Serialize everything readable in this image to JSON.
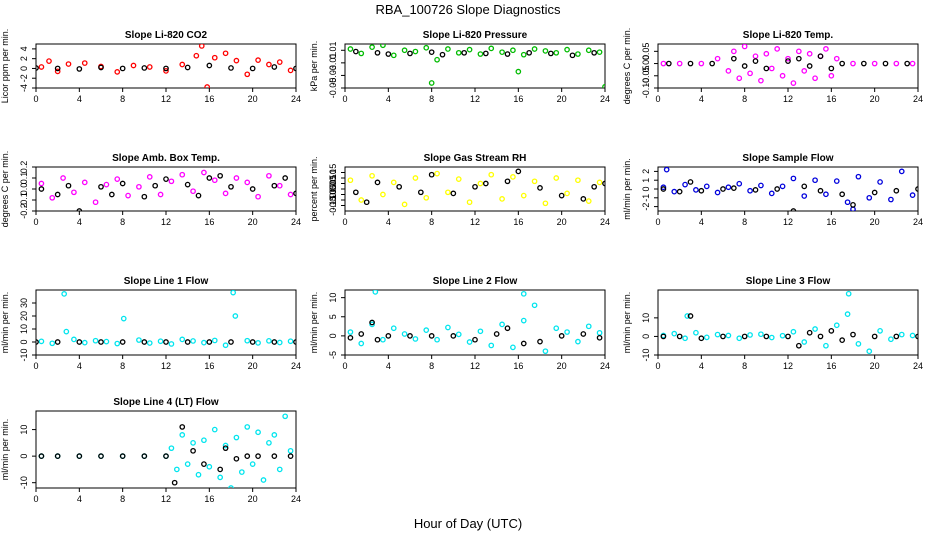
{
  "page": {
    "title": "RBA_100726  Slope Diagnostics",
    "xlabel": "Hour of Day (UTC)"
  },
  "chart_data": [
    {
      "type": "scatter",
      "title": "Slope Li-820 CO2",
      "ylabel": "Licor ppm per min.",
      "color": "#ff0000",
      "xlim": [
        0,
        24
      ],
      "ylim": [
        -4,
        5
      ],
      "xticks": [
        0,
        4,
        8,
        12,
        16,
        20,
        24
      ],
      "yticks": [
        -4,
        -2,
        0,
        2,
        4
      ],
      "ytick_labels": [
        "-4",
        "-2",
        "0",
        "2",
        "4"
      ],
      "x": [
        0.5,
        1.2,
        2,
        3,
        4.5,
        6,
        7.5,
        9,
        10.5,
        12,
        13.5,
        14.8,
        15.3,
        15.8,
        16.5,
        17.5,
        18.5,
        19.5,
        20.5,
        21.5,
        22.5,
        23.5
      ],
      "y": [
        0.3,
        1.5,
        -0.6,
        0.9,
        1.1,
        0.4,
        -0.7,
        0.6,
        0.3,
        -0.5,
        0.8,
        2.6,
        4.6,
        -3.8,
        2.2,
        3.1,
        1.6,
        -1.2,
        1.7,
        0.8,
        1.3,
        -0.4
      ],
      "x2": [
        0,
        2,
        4,
        6,
        8,
        10,
        12,
        14,
        16,
        18,
        20,
        22,
        24
      ],
      "y2": [
        0.1,
        0,
        -0.1,
        0.2,
        0,
        0.1,
        0,
        0.2,
        0.6,
        0.1,
        0,
        0.3,
        0
      ]
    },
    {
      "type": "scatter",
      "title": "Slope Li-820 Pressure",
      "ylabel": "kPa per min.",
      "color": "#00bb00",
      "xlim": [
        0,
        24
      ],
      "ylim": [
        -0.05,
        0.02
      ],
      "xticks": [
        0,
        4,
        8,
        12,
        16,
        20,
        24
      ],
      "yticks": [
        -0.05,
        -0.03,
        -0.01,
        0.01
      ],
      "ytick_labels": [
        "-0.05",
        "-0.03",
        "-0.01",
        "0.01"
      ],
      "x": [
        0.5,
        1.5,
        2.5,
        3.5,
        4.5,
        5.5,
        6.5,
        7.5,
        8.5,
        9.5,
        10.5,
        11.5,
        12.5,
        13.5,
        14.5,
        15.5,
        16.5,
        17.5,
        18.5,
        19.5,
        20.5,
        21.5,
        22.5,
        23.5,
        8,
        16,
        24
      ],
      "y": [
        0.012,
        0.005,
        0.015,
        0.018,
        0.002,
        0.01,
        0.008,
        0.014,
        -0.005,
        0.012,
        0.006,
        0.011,
        0.004,
        0.013,
        0.007,
        0.01,
        0.003,
        0.012,
        0.009,
        0.006,
        0.011,
        0.004,
        0.01,
        0.007,
        -0.042,
        -0.024,
        -0.048
      ],
      "x2": [
        1,
        3,
        4,
        6,
        8,
        9,
        11,
        13,
        15,
        17,
        19,
        21,
        23
      ],
      "y2": [
        0.008,
        0.006,
        0.004,
        0.005,
        0.007,
        0.003,
        0.006,
        0.005,
        0.004,
        0.006,
        0.005,
        0.002,
        0.006
      ]
    },
    {
      "type": "scatter",
      "title": "Slope Li-820 Temp.",
      "ylabel": "degrees C per min.",
      "color": "#ff00ff",
      "xlim": [
        0,
        24
      ],
      "ylim": [
        -0.1,
        0.08
      ],
      "xticks": [
        0,
        4,
        8,
        12,
        16,
        20,
        24
      ],
      "yticks": [
        -0.1,
        -0.05,
        0,
        0.05
      ],
      "ytick_labels": [
        "-0.10",
        "-0.05",
        "0.00",
        "0.05"
      ],
      "x": [
        0.5,
        2,
        4,
        5.5,
        6.5,
        7,
        7.5,
        8,
        8.5,
        9,
        9.5,
        10,
        10.5,
        11,
        11.5,
        12,
        12.5,
        13,
        13.5,
        14,
        14.5,
        15,
        15.5,
        16,
        16.5,
        18,
        20,
        22,
        23.5
      ],
      "y": [
        0,
        0,
        0,
        0.02,
        -0.03,
        0.05,
        -0.06,
        0.07,
        -0.04,
        0.03,
        -0.07,
        0.04,
        -0.02,
        0.06,
        -0.05,
        0.02,
        -0.08,
        0.05,
        -0.03,
        0.04,
        -0.06,
        0.03,
        0.06,
        -0.05,
        0.02,
        0,
        0,
        0,
        0
      ],
      "x2": [
        1,
        3,
        5,
        7,
        8,
        9,
        10,
        12,
        13,
        14,
        15,
        16,
        17,
        19,
        21,
        23
      ],
      "y2": [
        0,
        0,
        0,
        0.02,
        -0.01,
        0.01,
        -0.02,
        0.01,
        0.02,
        -0.01,
        0.03,
        -0.02,
        0,
        0,
        0,
        0
      ]
    },
    {
      "type": "scatter",
      "title": "Slope Amb. Box Temp.",
      "ylabel": "degrees C per min.",
      "color": "#ff00ff",
      "xlim": [
        0,
        24
      ],
      "ylim": [
        -0.2,
        0.2
      ],
      "xticks": [
        0,
        4,
        8,
        12,
        16,
        20,
        24
      ],
      "yticks": [
        -0.2,
        -0.1,
        0,
        0.1,
        0.2
      ],
      "ytick_labels": [
        "-0.2",
        "-0.1",
        "0.0",
        "0.1",
        "0.2"
      ],
      "x": [
        0.5,
        1.5,
        2.5,
        3.5,
        4.5,
        5.5,
        6.5,
        7.5,
        8.5,
        9.5,
        10.5,
        11.5,
        12.5,
        13.5,
        14.5,
        15.5,
        16.5,
        17.5,
        18.5,
        19.5,
        20.5,
        21.5,
        22.5,
        23.5
      ],
      "y": [
        0.05,
        -0.08,
        0.1,
        -0.03,
        0.06,
        -0.12,
        0.04,
        0.09,
        -0.06,
        0.02,
        0.11,
        -0.05,
        0.07,
        0.13,
        -0.02,
        0.15,
        0.08,
        -0.04,
        0.1,
        0.06,
        -0.07,
        0.12,
        0.03,
        -0.05
      ],
      "x2": [
        0.5,
        2,
        3,
        4,
        6,
        7,
        8,
        10,
        11,
        12,
        14,
        15,
        16,
        17,
        18,
        20,
        22,
        23,
        24
      ],
      "y2": [
        0,
        -0.05,
        0.03,
        -0.2,
        0.02,
        -0.05,
        0.05,
        -0.07,
        0.03,
        0.09,
        0.04,
        -0.06,
        0.1,
        0.12,
        0.02,
        0,
        0.03,
        0.1,
        -0.04
      ]
    },
    {
      "type": "scatter",
      "title": "Slope Gas Stream RH",
      "ylabel": "percent per min.",
      "color": "#ffff00",
      "xlim": [
        0,
        24
      ],
      "ylim": [
        -0.2,
        0.2
      ],
      "xticks": [
        0,
        4,
        8,
        12,
        16,
        20,
        24
      ],
      "yticks": [
        -0.15,
        -0.1,
        -0.05,
        0,
        0.05,
        0.1,
        0.15
      ],
      "ytick_labels": [
        "-0.15",
        "-0.10",
        "-0.05",
        "0.00",
        "0.05",
        "0.10",
        "0.15"
      ],
      "x": [
        0.5,
        1.5,
        2.5,
        3.5,
        4.5,
        5.5,
        6.5,
        7.5,
        8.5,
        9.5,
        10.5,
        11.5,
        12.5,
        13.5,
        14.5,
        15.5,
        16.5,
        17.5,
        18.5,
        19.5,
        20.5,
        21.5,
        22.5,
        23.5
      ],
      "y": [
        0.08,
        -0.1,
        0.12,
        -0.05,
        0.06,
        -0.14,
        0.1,
        -0.08,
        0.14,
        -0.03,
        0.09,
        -0.12,
        0.05,
        0.13,
        -0.09,
        0.11,
        -0.06,
        0.07,
        -0.13,
        0.1,
        -0.04,
        0.08,
        -0.11,
        0.06
      ],
      "x2": [
        1,
        2,
        3,
        5,
        7,
        8,
        10,
        12,
        13,
        15,
        16,
        18,
        20,
        22,
        23,
        24
      ],
      "y2": [
        -0.03,
        -0.12,
        0.06,
        0.02,
        -0.03,
        0.13,
        -0.04,
        0.02,
        0.05,
        0.07,
        0.16,
        0.01,
        -0.06,
        -0.09,
        0.02,
        0.05
      ]
    },
    {
      "type": "scatter",
      "title": "Slope Sample Flow",
      "ylabel": "ml/min per min.",
      "color": "#0000dd",
      "xlim": [
        0,
        24
      ],
      "ylim": [
        -2.5,
        2.5
      ],
      "xticks": [
        0,
        4,
        8,
        12,
        16,
        20,
        24
      ],
      "yticks": [
        -2,
        -1,
        0,
        1,
        2
      ],
      "ytick_labels": [
        "-2",
        "-1",
        "0",
        "1",
        "2"
      ],
      "x": [
        0.5,
        1.5,
        2.5,
        3.5,
        4.5,
        5.5,
        6.5,
        7.5,
        8.5,
        9.5,
        10.5,
        11.5,
        12.5,
        13.5,
        14.5,
        15.5,
        16.5,
        17.5,
        18.5,
        19.5,
        20.5,
        21.5,
        22.5,
        23.5,
        0.8,
        18
      ],
      "y": [
        0.2,
        -0.3,
        0.5,
        -0.1,
        0.3,
        -0.4,
        0.2,
        0.6,
        -0.2,
        0.4,
        -0.5,
        0.3,
        1.2,
        -0.8,
        1.0,
        -0.6,
        0.9,
        -1.5,
        1.4,
        -1.0,
        0.8,
        -1.2,
        2.0,
        -0.7,
        2.2,
        -2.3
      ],
      "x2": [
        0.5,
        2,
        3,
        4,
        6,
        7,
        9,
        11,
        12.5,
        13.5,
        15,
        17,
        18,
        20,
        22,
        24
      ],
      "y2": [
        0,
        -0.3,
        0.8,
        -0.2,
        0,
        0.1,
        -0.1,
        0,
        -2.5,
        0.3,
        -0.2,
        -0.6,
        -1.8,
        -0.4,
        -0.2,
        0
      ]
    },
    {
      "type": "scatter",
      "title": "Slope Line 1 Flow",
      "ylabel": "ml/min per min.",
      "color": "#00e5ee",
      "xlim": [
        0,
        24
      ],
      "ylim": [
        -10,
        40
      ],
      "xticks": [
        0,
        4,
        8,
        12,
        16,
        20,
        24
      ],
      "yticks": [
        -10,
        0,
        10,
        20,
        30
      ],
      "ytick_labels": [
        "-10",
        "0",
        "10",
        "20",
        "30"
      ],
      "x": [
        0.5,
        1.5,
        2.6,
        3.5,
        4.5,
        5.5,
        6.5,
        7.5,
        8.1,
        9.5,
        10.5,
        11.5,
        12.5,
        13.5,
        14.5,
        15.5,
        16.5,
        17.5,
        18.2,
        18.4,
        19.5,
        20.5,
        21.5,
        22.5,
        23.5,
        2.8
      ],
      "y": [
        0.5,
        -1,
        37,
        2,
        -0.5,
        1,
        0.3,
        -1.2,
        18,
        1.5,
        -0.8,
        0.6,
        -1.5,
        2,
        0.8,
        -0.5,
        1.2,
        -2.5,
        38,
        20,
        1,
        -0.7,
        0.9,
        -0.4,
        0.6,
        8
      ],
      "x2": [
        0,
        2,
        4,
        6,
        8,
        10,
        12,
        14,
        16,
        18,
        20,
        22,
        24
      ],
      "y2": [
        0,
        0,
        0,
        0,
        0,
        0,
        0,
        0,
        0,
        0,
        0,
        0,
        0
      ]
    },
    {
      "type": "scatter",
      "title": "Slope Line 2 Flow",
      "ylabel": "ml/min per min.",
      "color": "#00e5ee",
      "xlim": [
        0,
        24
      ],
      "ylim": [
        -5,
        12
      ],
      "xticks": [
        0,
        4,
        8,
        12,
        16,
        20,
        24
      ],
      "yticks": [
        -5,
        0,
        5,
        10
      ],
      "ytick_labels": [
        "-5",
        "0",
        "5",
        "10"
      ],
      "x": [
        0.5,
        1.5,
        2.5,
        3.5,
        4.5,
        5.5,
        6.5,
        7.5,
        8.5,
        9.5,
        10.5,
        11.5,
        12.5,
        13.5,
        14.5,
        15.5,
        16.5,
        17.5,
        18.5,
        19.5,
        20.5,
        21.5,
        22.5,
        23.5,
        2.8,
        16.5
      ],
      "y": [
        1,
        -2,
        3,
        -1,
        2,
        0.5,
        -0.8,
        1.5,
        -1,
        2.2,
        0.4,
        -1.6,
        1.2,
        -2.5,
        3,
        -3,
        4,
        8,
        -4,
        2,
        1,
        -1.5,
        2.5,
        0.8,
        11.5,
        11
      ],
      "x2": [
        0.5,
        1.5,
        2.5,
        3,
        4,
        6,
        8,
        10,
        12,
        14,
        15,
        16.5,
        18,
        20,
        22,
        23.5
      ],
      "y2": [
        -0.5,
        0.5,
        3.5,
        -1,
        0,
        0,
        0,
        0,
        -1,
        0.5,
        2,
        -2,
        -1.5,
        0,
        0.5,
        -0.5
      ]
    },
    {
      "type": "scatter",
      "title": "Slope Line 3 Flow",
      "ylabel": "ml/min per min.",
      "color": "#00e5ee",
      "xlim": [
        0,
        24
      ],
      "ylim": [
        -10,
        25
      ],
      "xticks": [
        0,
        4,
        8,
        12,
        16,
        20,
        24
      ],
      "yticks": [
        -10,
        0,
        10
      ],
      "ytick_labels": [
        "-10",
        "0",
        "10"
      ],
      "x": [
        0.5,
        1.5,
        2.5,
        3.5,
        4.5,
        5.5,
        6.5,
        7.5,
        8.5,
        9.5,
        10.5,
        11.5,
        12.5,
        13.5,
        14.5,
        15.5,
        16.5,
        17.5,
        18.5,
        19.5,
        20.5,
        21.5,
        22.5,
        23.5,
        2.7,
        17.6
      ],
      "y": [
        0.5,
        1.5,
        -1,
        2,
        -0.5,
        1,
        0.5,
        -1,
        0.8,
        1.2,
        -0.6,
        0.4,
        2.5,
        -3,
        4,
        -5,
        6,
        12,
        -4,
        -8,
        3,
        -1.5,
        1,
        0.5,
        11,
        23
      ],
      "x2": [
        0.5,
        2,
        3,
        4,
        6,
        8,
        10,
        12,
        13,
        14,
        15,
        16,
        17,
        18,
        20,
        22,
        24
      ],
      "y2": [
        0,
        0,
        11,
        -1,
        0,
        0,
        0,
        0,
        -5,
        2,
        0,
        3,
        -2,
        1,
        0,
        0,
        0
      ]
    },
    {
      "type": "scatter",
      "title": "Slope Line 4 (LT) Flow",
      "ylabel": "ml/min per min.",
      "color": "#00e5ee",
      "xlim": [
        0,
        24
      ],
      "ylim": [
        -12,
        17
      ],
      "xticks": [
        0,
        4,
        8,
        12,
        16,
        20,
        24
      ],
      "yticks": [
        -10,
        0,
        10
      ],
      "ytick_labels": [
        "-10",
        "0",
        "10"
      ],
      "x": [
        0.5,
        2,
        4,
        6,
        8,
        10,
        12,
        12.5,
        13,
        13.5,
        14,
        14.5,
        15,
        15.5,
        16,
        16.5,
        17,
        17.5,
        18,
        18.5,
        19,
        19.5,
        20,
        20.5,
        21,
        21.5,
        22,
        22.5,
        23,
        23.5
      ],
      "y": [
        0,
        0,
        0,
        0,
        0,
        0,
        0,
        3,
        -5,
        8,
        -3,
        5,
        -7,
        6,
        -4,
        10,
        -8,
        4,
        -12,
        7,
        -6,
        11,
        -3,
        9,
        -9,
        5,
        8,
        -5,
        15,
        2
      ],
      "x2": [
        0.5,
        2,
        4,
        6,
        8,
        10,
        12,
        12.8,
        13.5,
        14.5,
        15.5,
        17,
        17.5,
        18.5,
        19.5,
        20.5,
        22,
        23.5
      ],
      "y2": [
        0,
        0,
        0,
        0,
        0,
        0,
        0,
        -10,
        11,
        2,
        -3,
        -5,
        3,
        -1,
        0,
        0,
        0,
        0
      ]
    }
  ]
}
